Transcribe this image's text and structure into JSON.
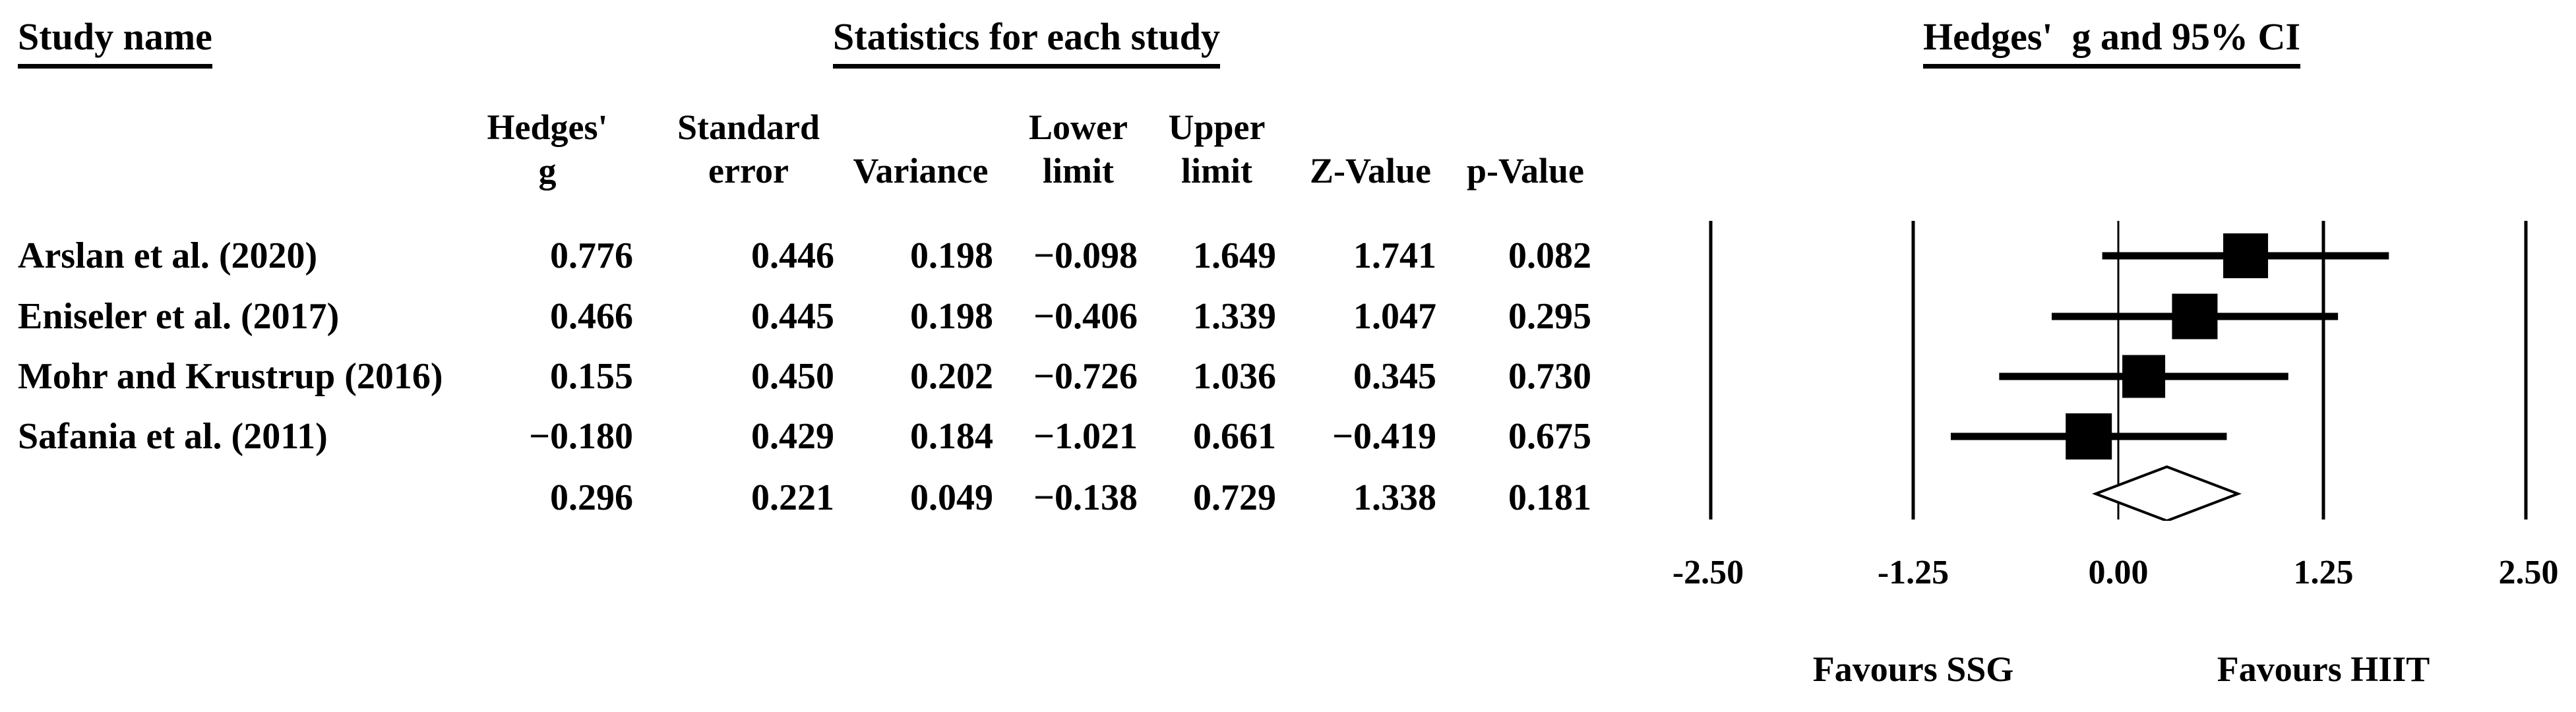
{
  "headers": {
    "study_name": "Study name",
    "statistics": "Statistics for each study",
    "plot": "Hedges'  g and 95% CI"
  },
  "columns": [
    {
      "id": "g",
      "line1": "Hedges'",
      "line2": "g"
    },
    {
      "id": "se",
      "line1": "Standard",
      "line2": "error"
    },
    {
      "id": "variance",
      "line1": "",
      "line2": "Variance"
    },
    {
      "id": "lower",
      "line1": "Lower",
      "line2": "limit"
    },
    {
      "id": "upper",
      "line1": "Upper",
      "line2": "limit"
    },
    {
      "id": "z",
      "line1": "",
      "line2": "Z-Value"
    },
    {
      "id": "p",
      "line1": "",
      "line2": "p-Value"
    }
  ],
  "rows": [
    {
      "study": "Arslan et al. (2020)",
      "g": "0.776",
      "se": "0.446",
      "variance": "0.198",
      "lower": "−0.098",
      "upper": "1.649",
      "z": "1.741",
      "p": "0.082"
    },
    {
      "study": "Eniseler et al. (2017)",
      "g": "0.466",
      "se": "0.445",
      "variance": "0.198",
      "lower": "−0.406",
      "upper": "1.339",
      "z": "1.047",
      "p": "0.295"
    },
    {
      "study": "Mohr and Krustrup (2016)",
      "g": "0.155",
      "se": "0.450",
      "variance": "0.202",
      "lower": "−0.726",
      "upper": "1.036",
      "z": "0.345",
      "p": "0.730"
    },
    {
      "study": "Safania et al. (2011)",
      "g": "−0.180",
      "se": "0.429",
      "variance": "0.184",
      "lower": "−1.021",
      "upper": "0.661",
      "z": "−0.419",
      "p": "0.675"
    },
    {
      "study": "",
      "g": "0.296",
      "se": "0.221",
      "variance": "0.049",
      "lower": "−0.138",
      "upper": "0.729",
      "z": "1.338",
      "p": "0.181"
    }
  ],
  "chart_data": {
    "type": "forest",
    "title": "Hedges'  g and 95% CI",
    "xlim": [
      -2.5,
      2.5
    ],
    "x_ticks": [
      -2.5,
      -1.25,
      0,
      1.25,
      2.5
    ],
    "x_tick_labels": [
      "-2.50",
      "-1.25",
      "0.00",
      "1.25",
      "2.50"
    ],
    "footer_left": "Favours SSG",
    "footer_right": "Favours HIIT",
    "marker_color": "#000000",
    "studies": [
      {
        "name": "Arslan et al. (2020)",
        "g": 0.776,
        "lower": -0.098,
        "upper": 1.649,
        "marker_size": 68
      },
      {
        "name": "Eniseler et al. (2017)",
        "g": 0.466,
        "lower": -0.406,
        "upper": 1.339,
        "marker_size": 69
      },
      {
        "name": "Mohr and Krustrup (2016)",
        "g": 0.155,
        "lower": -0.726,
        "upper": 1.036,
        "marker_size": 65
      },
      {
        "name": "Safania et al. (2011)",
        "g": -0.18,
        "lower": -1.021,
        "upper": 0.661,
        "marker_size": 70
      }
    ],
    "summary": {
      "g": 0.296,
      "lower": -0.138,
      "upper": 0.729
    },
    "row_y": [
      55,
      147,
      238,
      329
    ],
    "summary_y": 416,
    "grid_on": true
  }
}
